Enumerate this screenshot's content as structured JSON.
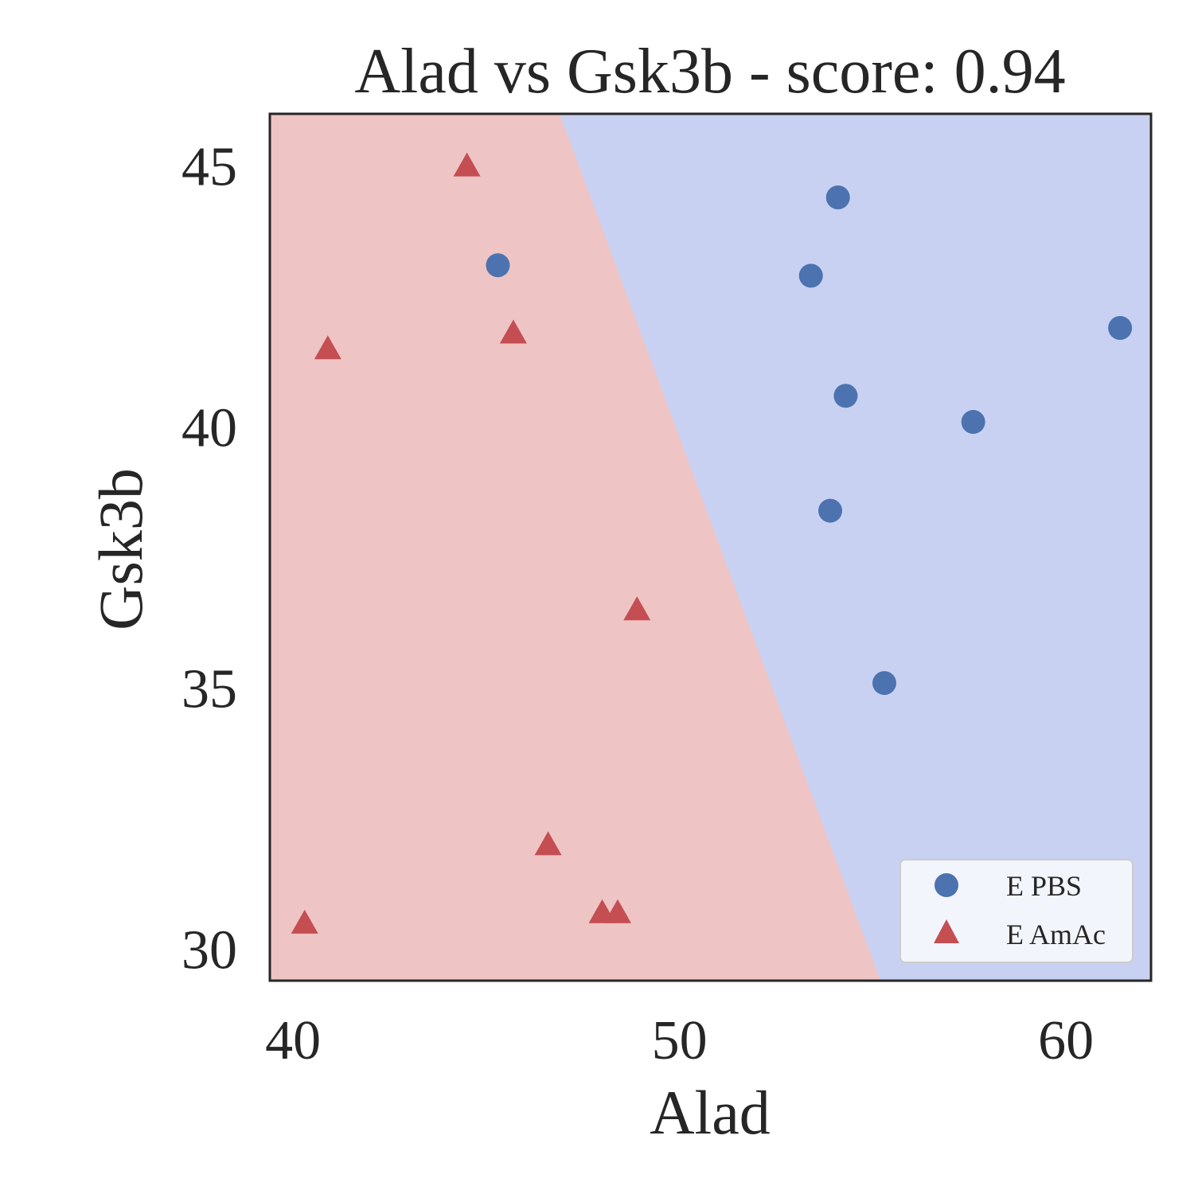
{
  "chart_data": {
    "type": "scatter",
    "title": "Alad vs Gsk3b - score: 0.94",
    "xlabel": "Alad",
    "ylabel": "Gsk3b",
    "xlim": [
      39.4,
      62.2
    ],
    "ylim": [
      29.4,
      46.0
    ],
    "xticks": [
      40,
      50,
      60
    ],
    "yticks": [
      30,
      35,
      40,
      45
    ],
    "grid": false,
    "legend_placement": "lower-right",
    "decision_boundary": {
      "points": [
        [
          46.9,
          46.0
        ],
        [
          55.2,
          29.4
        ]
      ],
      "left_region_class": "E AmAc",
      "right_region_class": "E PBS"
    },
    "region_colors": {
      "E PBS": "#c9d1f2",
      "E AmAc": "#eec4c4"
    },
    "series": [
      {
        "name": "E PBS",
        "marker": "circle",
        "color": "#4c72b0",
        "points": [
          [
            54.1,
            44.4
          ],
          [
            53.4,
            42.9
          ],
          [
            61.4,
            41.9
          ],
          [
            54.3,
            40.6
          ],
          [
            57.6,
            40.1
          ],
          [
            53.9,
            38.4
          ],
          [
            55.3,
            35.1
          ],
          [
            45.3,
            43.1
          ]
        ]
      },
      {
        "name": "E AmAc",
        "marker": "triangle",
        "color": "#c44e52",
        "points": [
          [
            44.5,
            45.0
          ],
          [
            40.9,
            41.5
          ],
          [
            45.7,
            41.8
          ],
          [
            48.9,
            36.5
          ],
          [
            46.6,
            32.0
          ],
          [
            48.0,
            30.7
          ],
          [
            48.4,
            30.7
          ],
          [
            40.3,
            30.5
          ]
        ]
      }
    ]
  }
}
